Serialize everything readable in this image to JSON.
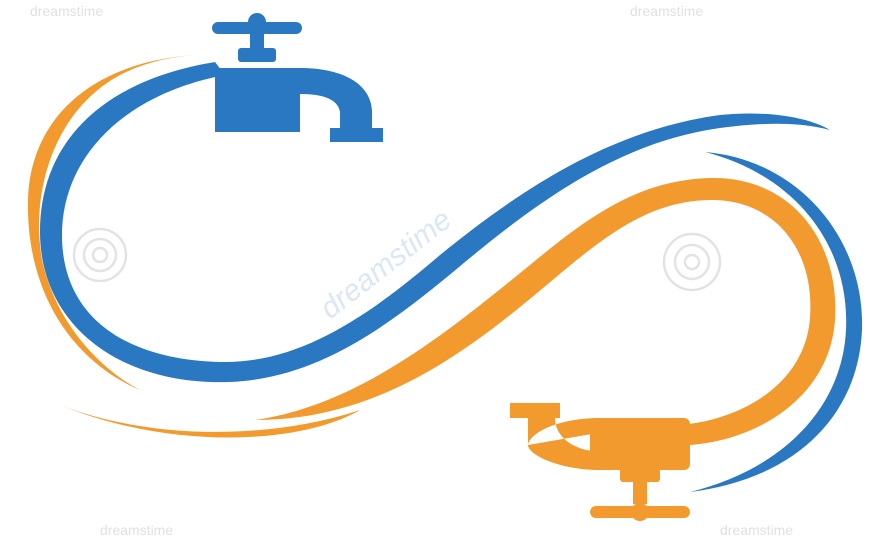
{
  "logo": {
    "colors": {
      "blue": "#2a78c2",
      "orange": "#f29a2e",
      "watermark": "#cfe0ee",
      "background": "#ffffff"
    },
    "icons": [
      "water-tap-icon",
      "water-tap-icon"
    ],
    "watermark": {
      "brand": "dreamstime",
      "corner_marks": [
        "dreamstime",
        "dreamstime",
        "dreamstime",
        "dreamstime"
      ]
    }
  }
}
